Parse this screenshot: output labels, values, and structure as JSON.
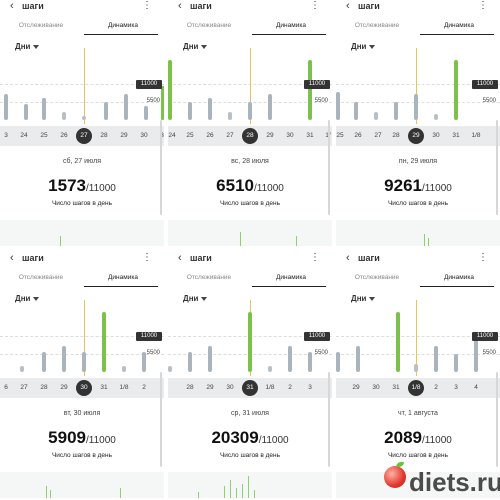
{
  "app": {
    "title": "шаги",
    "tabs": [
      "Отслеживание",
      "Динамика"
    ],
    "period": "Дни",
    "goal_label": "11000",
    "half_goal_label": "5500",
    "caption": "Число шагов в день"
  },
  "panels": [
    {
      "ticks": [
        "3",
        "24",
        "25",
        "26",
        "27",
        "28",
        "29",
        "30",
        "3"
      ],
      "selected_tick": "27",
      "date": "сб, 27 июля",
      "steps": "1573",
      "goal": "/11000"
    },
    {
      "ticks": [
        "24",
        "25",
        "26",
        "27",
        "28",
        "29",
        "30",
        "31",
        "1/"
      ],
      "selected_tick": "28",
      "date": "вс, 28 июля",
      "steps": "6510",
      "goal": "/11000"
    },
    {
      "ticks": [
        "25",
        "26",
        "27",
        "28",
        "29",
        "30",
        "31",
        "1/8"
      ],
      "selected_tick": "29",
      "date": "пн, 29 июля",
      "steps": "9261",
      "goal": "/11000"
    },
    {
      "ticks": [
        "6",
        "27",
        "28",
        "29",
        "30",
        "31",
        "1/8",
        "2"
      ],
      "selected_tick": "30",
      "date": "вт, 30 июля",
      "steps": "5909",
      "goal": "/11000"
    },
    {
      "ticks": [
        "28",
        "29",
        "30",
        "31",
        "1/8",
        "2",
        "3"
      ],
      "selected_tick": "31",
      "date": "ср, 31 июля",
      "steps": "20309",
      "goal": "/11000"
    },
    {
      "ticks": [
        "29",
        "30",
        "31",
        "1/8",
        "2",
        "3",
        "4"
      ],
      "selected_tick": "1/8",
      "date": "чт, 1 августа",
      "steps": "2089",
      "goal": "/11000"
    }
  ],
  "watermark": "diets.ru",
  "colors": {
    "goal_bar": "#7cc24a",
    "normal_bar": "#aab4bd",
    "selected_marker": "#333333",
    "selection_line": "#e6c35c"
  }
}
